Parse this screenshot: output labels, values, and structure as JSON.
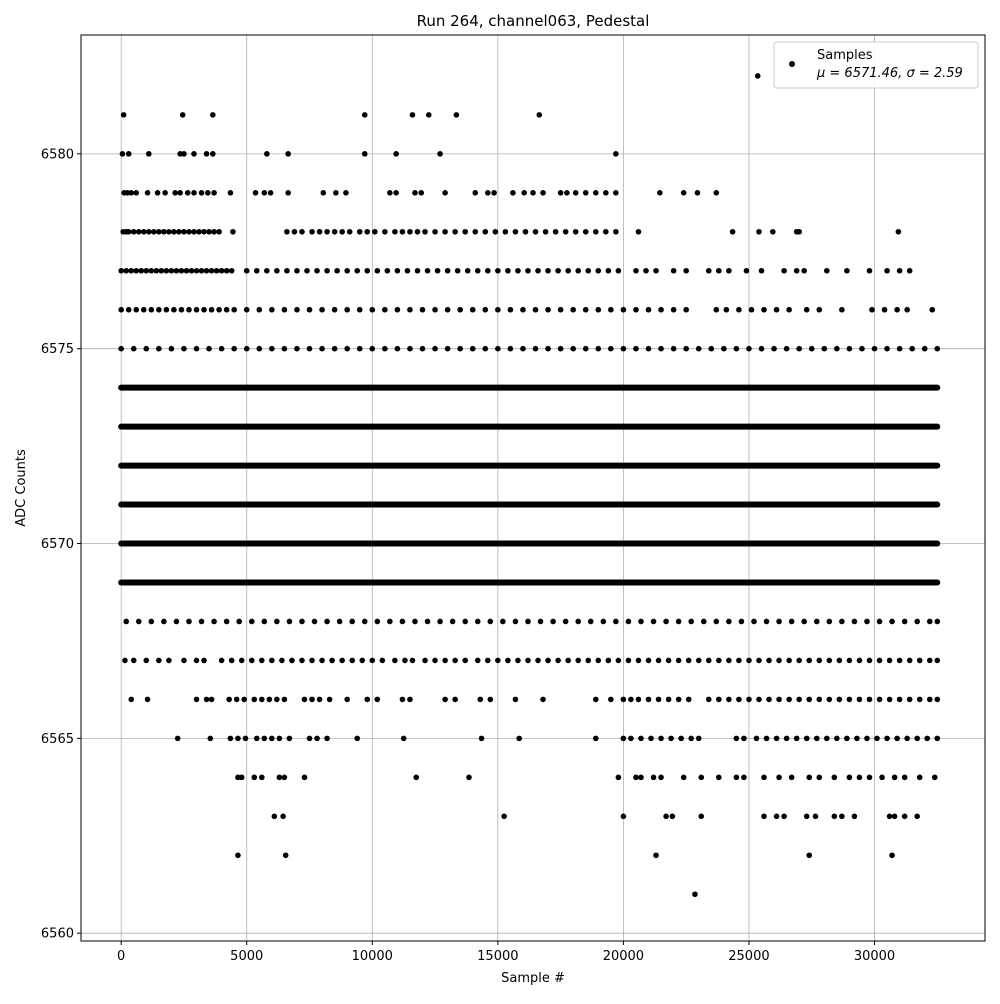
{
  "chart_data": {
    "type": "scatter",
    "title": "Run 264, channel063, Pedestal",
    "xlabel": "Sample #",
    "ylabel": "ADC Counts",
    "xlim": [
      -1600,
      34400
    ],
    "ylim": [
      6559.8,
      6583.05
    ],
    "grid": true,
    "legend_position": "top-right",
    "x_ticks": [
      0,
      5000,
      10000,
      15000,
      20000,
      25000,
      30000
    ],
    "x_tick_labels": [
      "0",
      "5000",
      "10000",
      "15000",
      "20000",
      "25000",
      "30000"
    ],
    "y_ticks": [
      6560,
      6565,
      6570,
      6575,
      6580
    ],
    "y_tick_labels": [
      "6560",
      "6565",
      "6570",
      "6575",
      "6580"
    ],
    "series": [
      {
        "name": "Samples",
        "color": "#000000",
        "marker": "circle",
        "x_range": [
          0,
          32500
        ],
        "level_profiles": [
          {
            "y": 6582,
            "x": [
              25350
            ]
          },
          {
            "y": 6581,
            "x": [
              100,
              2450,
              3650,
              9700,
              11600,
              12250,
              13350,
              16650
            ]
          },
          {
            "y": 6580,
            "x": [
              50,
              300,
              1100,
              2350,
              2500,
              2900,
              3400,
              3650,
              5800,
              6650,
              9700,
              10950,
              12700,
              19700
            ]
          },
          {
            "y": 6579,
            "x": [
              120,
              250,
              400,
              600,
              1050,
              1450,
              1750,
              2150,
              2350,
              2650,
              2900,
              3200,
              3450,
              3700,
              4350,
              5350,
              5700,
              5950,
              6650,
              8050,
              8550,
              8950,
              10700,
              10950,
              11700,
              11950,
              12900,
              14100,
              14600,
              14850,
              15600,
              16050,
              16400,
              16800,
              17500,
              17750,
              18100,
              18500,
              18900,
              19300,
              19700,
              21450,
              22400,
              22950,
              23700
            ]
          },
          {
            "y": 6578,
            "x": [
              80,
              200,
              300,
              500,
              700,
              900,
              1100,
              1300,
              1500,
              1700,
              1900,
              2100,
              2300,
              2500,
              2700,
              2900,
              3100,
              3300,
              3500,
              3700,
              3900,
              4450,
              6600,
              6900,
              7200,
              7600,
              7900,
              8200,
              8500,
              8800,
              9100,
              9500,
              9800,
              10100,
              10500,
              10900,
              11200,
              11500,
              11800,
              12100,
              12500,
              12900,
              13300,
              13700,
              14100,
              14500,
              14900,
              15300,
              15700,
              16100,
              16500,
              16900,
              17300,
              17700,
              18100,
              18500,
              18900,
              19300,
              19700,
              20600,
              24350,
              25400,
              25950,
              26900,
              27000,
              30950
            ]
          },
          {
            "y": 6577,
            "x": [
              0,
              200,
              400,
              600,
              800,
              1000,
              1200,
              1400,
              1600,
              1800,
              2000,
              2200,
              2400,
              2600,
              2800,
              3000,
              3200,
              3400,
              3600,
              3800,
              4000,
              4200,
              4400,
              5000,
              5400,
              5800,
              6200,
              6600,
              7000,
              7400,
              7800,
              8200,
              8600,
              9000,
              9400,
              9800,
              10200,
              10600,
              11000,
              11400,
              11800,
              12200,
              12600,
              13000,
              13400,
              13800,
              14200,
              14600,
              15000,
              15400,
              15800,
              16200,
              16600,
              17000,
              17400,
              17800,
              18200,
              18600,
              19000,
              19400,
              19800,
              20500,
              20900,
              21300,
              22000,
              22500,
              23400,
              23800,
              24200,
              24900,
              25500,
              26400,
              26900,
              27200,
              28100,
              28900,
              29800,
              30500,
              31000,
              31400
            ]
          },
          {
            "y": 6576,
            "x": [
              0,
              300,
              600,
              900,
              1200,
              1500,
              1800,
              2100,
              2400,
              2700,
              3000,
              3300,
              3600,
              3900,
              4200,
              4500,
              5000,
              5500,
              6000,
              6500,
              7000,
              7500,
              8000,
              8500,
              9000,
              9500,
              10000,
              10500,
              11000,
              11500,
              12000,
              12500,
              13000,
              13500,
              14000,
              14500,
              15000,
              15500,
              16000,
              16500,
              17000,
              17500,
              18000,
              18500,
              19000,
              19500,
              20000,
              20500,
              21000,
              21500,
              22000,
              22500,
              23700,
              24100,
              24600,
              25100,
              25600,
              26100,
              26600,
              27300,
              27800,
              28700,
              29900,
              30400,
              30900,
              31300,
              32300
            ]
          },
          {
            "y": 6575,
            "x": [
              0,
              500,
              1000,
              1500,
              2000,
              2500,
              3000,
              3500,
              4000,
              4500,
              5000,
              5500,
              6000,
              6500,
              7000,
              7500,
              8000,
              8500,
              9000,
              9500,
              10000,
              10500,
              11000,
              11500,
              12000,
              12500,
              13000,
              13500,
              14000,
              14500,
              15000,
              15500,
              16000,
              16500,
              17000,
              17500,
              18000,
              18500,
              19000,
              19500,
              20000,
              20500,
              21000,
              21500,
              22000,
              22500,
              23000,
              23500,
              24000,
              24500,
              25000,
              25500,
              26000,
              26500,
              27000,
              27500,
              28000,
              28500,
              29000,
              29500,
              30000,
              30500,
              31000,
              31500,
              32000,
              32500
            ]
          },
          {
            "y": 6574,
            "dense": [
              0,
              32500
            ]
          },
          {
            "y": 6573,
            "dense": [
              0,
              32500
            ]
          },
          {
            "y": 6572,
            "dense": [
              0,
              32500
            ]
          },
          {
            "y": 6571,
            "dense": [
              0,
              32500
            ]
          },
          {
            "y": 6570,
            "dense": [
              0,
              32500
            ]
          },
          {
            "y": 6569,
            "dense": [
              0,
              32500
            ]
          },
          {
            "y": 6568,
            "x": [
              200,
              700,
              1200,
              1700,
              2200,
              2700,
              3200,
              3700,
              4200,
              4700,
              5200,
              5700,
              6200,
              6700,
              7200,
              7700,
              8200,
              8700,
              9200,
              9700,
              10200,
              10700,
              11200,
              11700,
              12200,
              12700,
              13200,
              13700,
              14200,
              14700,
              15200,
              15700,
              16200,
              16700,
              17200,
              17700,
              18200,
              18700,
              19200,
              19700,
              20200,
              20700,
              21200,
              21700,
              22200,
              22700,
              23200,
              23700,
              24200,
              24700,
              25200,
              25700,
              26200,
              26700,
              27200,
              27700,
              28200,
              28700,
              29200,
              29700,
              30200,
              30700,
              31200,
              31700,
              32200,
              32500
            ]
          },
          {
            "y": 6567,
            "x": [
              150,
              500,
              1000,
              1500,
              1900,
              2500,
              3000,
              3300,
              4000,
              4400,
              4800,
              5200,
              5600,
              6000,
              6400,
              6800,
              7200,
              7600,
              8000,
              8400,
              8800,
              9200,
              9600,
              10000,
              10400,
              10900,
              11300,
              11600,
              12100,
              12500,
              12900,
              13300,
              13700,
              14200,
              14600,
              15000,
              15400,
              15800,
              16200,
              16600,
              17000,
              17400,
              17800,
              18200,
              18600,
              19000,
              19400,
              19800,
              20200,
              20600,
              21000,
              21400,
              21800,
              22200,
              22600,
              23000,
              23400,
              23800,
              24200,
              24600,
              25000,
              25400,
              25800,
              26200,
              26600,
              27000,
              27400,
              27800,
              28200,
              28600,
              29000,
              29400,
              29800,
              30200,
              30600,
              31000,
              31400,
              31800,
              32200,
              32500
            ]
          },
          {
            "y": 6566,
            "x": [
              400,
              1050,
              3000,
              3400,
              3600,
              4300,
              4600,
              4900,
              5300,
              5600,
              5900,
              6200,
              6500,
              7300,
              7600,
              7900,
              8300,
              9000,
              9800,
              10200,
              11200,
              11500,
              12900,
              13300,
              14300,
              14700,
              15700,
              16800,
              18900,
              19500,
              20000,
              20300,
              20600,
              21000,
              21400,
              21800,
              22200,
              22600,
              23400,
              23800,
              24200,
              24600,
              25000,
              25400,
              25800,
              26200,
              26600,
              27000,
              27400,
              27800,
              28200,
              28600,
              29000,
              29400,
              29800,
              30200,
              30600,
              31000,
              31400,
              31800,
              32200,
              32500
            ]
          },
          {
            "y": 6565,
            "x": [
              2250,
              3550,
              4350,
              4650,
              4950,
              5400,
              5700,
              6000,
              6300,
              6700,
              7500,
              7800,
              8200,
              9400,
              11250,
              14350,
              15850,
              18900,
              20000,
              20300,
              20700,
              21100,
              21500,
              21900,
              22300,
              22700,
              23000,
              24500,
              24800,
              25300,
              25700,
              26100,
              26500,
              26900,
              27300,
              27700,
              28100,
              28500,
              28900,
              29300,
              29700,
              30100,
              30500,
              30900,
              31300,
              31700,
              32100,
              32500
            ]
          },
          {
            "y": 6564,
            "x": [
              4650,
              4800,
              5300,
              5600,
              6300,
              6500,
              7300,
              11750,
              13850,
              19800,
              20500,
              20700,
              21200,
              21500,
              22400,
              23100,
              23800,
              24500,
              24800,
              25600,
              26200,
              26700,
              27400,
              27800,
              28400,
              29000,
              29400,
              29800,
              30300,
              30800,
              31200,
              31800,
              32400
            ]
          },
          {
            "y": 6563,
            "x": [
              6100,
              6450,
              15250,
              20000,
              21700,
              21950,
              23100,
              25600,
              26100,
              26400,
              27300,
              27650,
              28400,
              28700,
              29200,
              30600,
              30800,
              31200,
              31700
            ]
          },
          {
            "y": 6562,
            "x": [
              4650,
              6550,
              21300,
              27400,
              30700
            ]
          },
          {
            "y": 6561,
            "x": [
              22850
            ]
          }
        ]
      }
    ],
    "legend": {
      "line1": "Samples",
      "line2": "μ = 6571.46, σ = 2.59"
    }
  }
}
